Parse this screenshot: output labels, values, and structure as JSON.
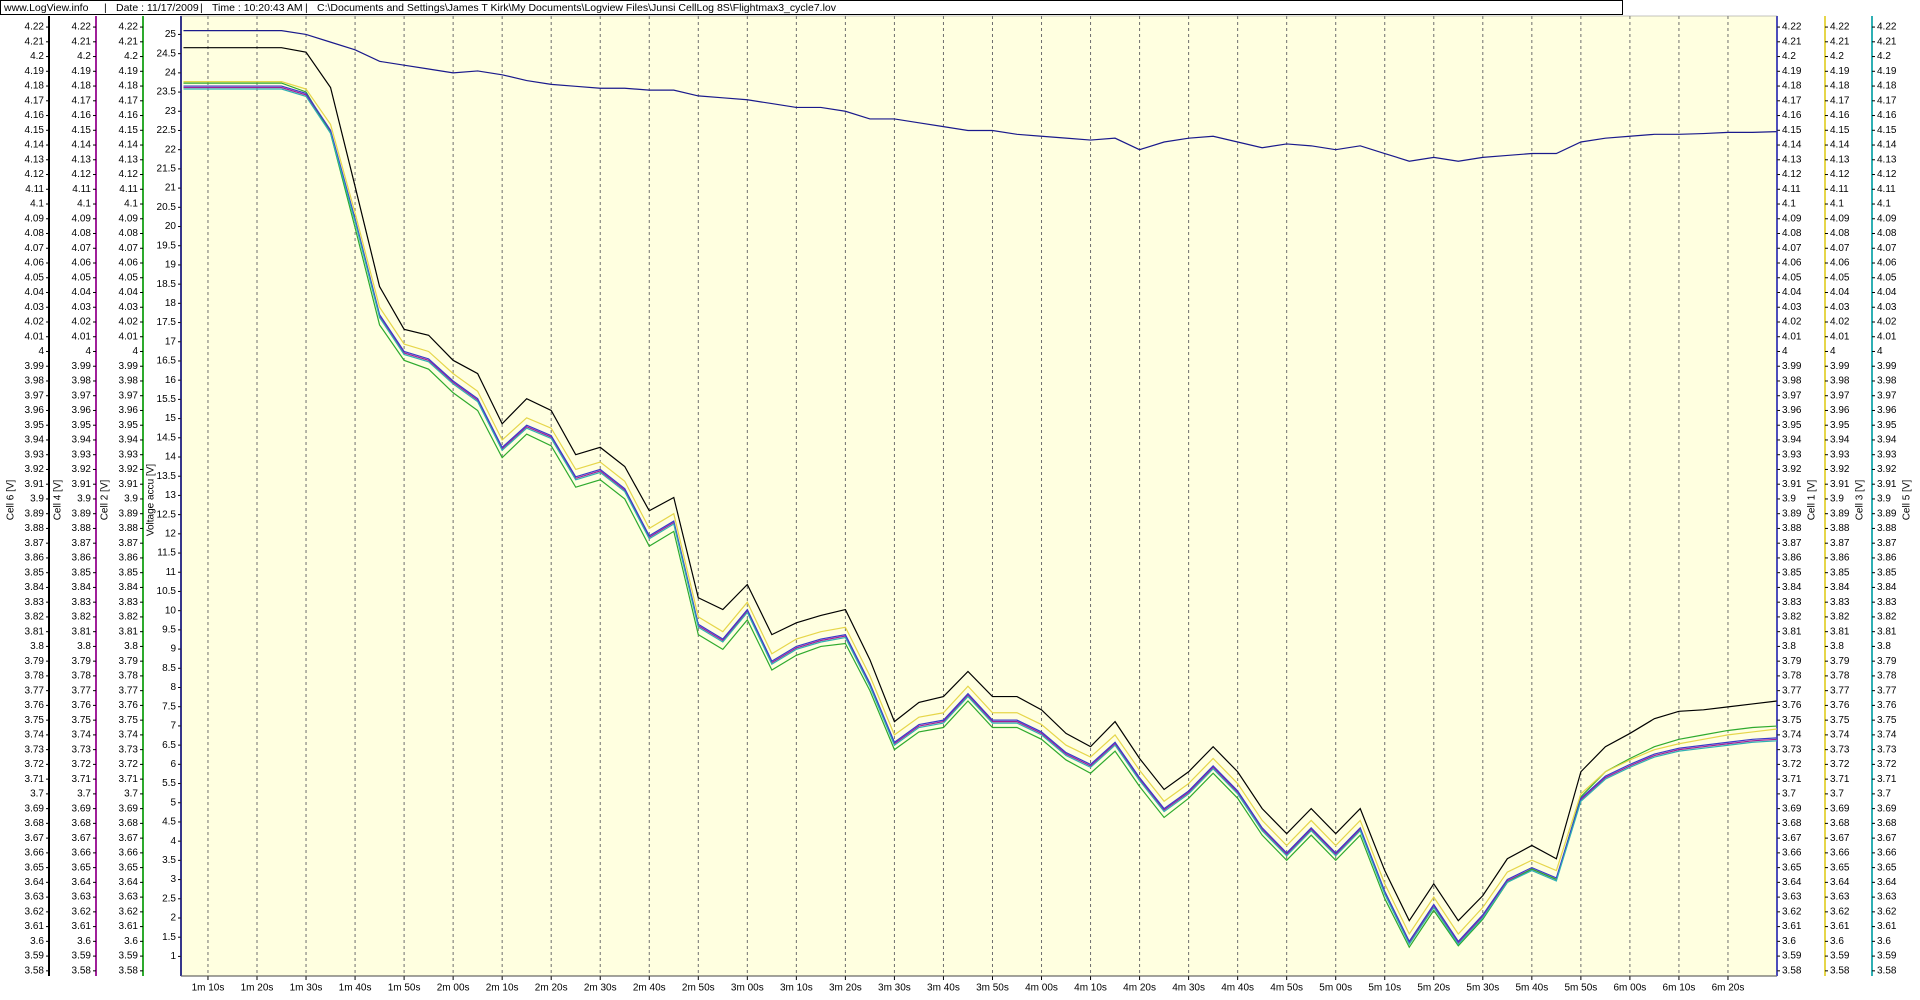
{
  "header": {
    "site": "www.LogView.info",
    "date": "Date : 11/17/2009",
    "time": "Time : 10:20:43 AM",
    "file": "C:\\Documents and Settings\\James T Kirk\\My Documents\\Logview Files\\Junsi CellLog 8S\\Flightmax3_cycle7.lov"
  },
  "chart_data": {
    "type": "line",
    "grid": true,
    "background": "#ffffe0",
    "x": [
      65,
      70,
      75,
      80,
      85,
      90,
      95,
      100,
      105,
      110,
      115,
      120,
      125,
      130,
      135,
      140,
      145,
      150,
      155,
      160,
      165,
      170,
      175,
      180,
      185,
      190,
      195,
      200,
      205,
      210,
      215,
      220,
      225,
      230,
      235,
      240,
      245,
      250,
      255,
      260,
      265,
      270,
      275,
      280,
      285,
      290,
      295,
      300,
      305,
      310,
      315,
      320,
      325,
      330,
      335,
      340,
      345,
      350,
      355,
      360,
      365,
      370,
      375,
      380,
      385,
      390
    ],
    "xlim": [
      64.5,
      390
    ],
    "xticks": [
      {
        "value": 70,
        "label": "1m 10s"
      },
      {
        "value": 80,
        "label": "1m 20s"
      },
      {
        "value": 90,
        "label": "1m 30s"
      },
      {
        "value": 100,
        "label": "1m 40s"
      },
      {
        "value": 110,
        "label": "1m 50s"
      },
      {
        "value": 120,
        "label": "2m 00s"
      },
      {
        "value": 130,
        "label": "2m 10s"
      },
      {
        "value": 140,
        "label": "2m 20s"
      },
      {
        "value": 150,
        "label": "2m 30s"
      },
      {
        "value": 160,
        "label": "2m 40s"
      },
      {
        "value": 170,
        "label": "2m 50s"
      },
      {
        "value": 180,
        "label": "3m 00s"
      },
      {
        "value": 190,
        "label": "3m 10s"
      },
      {
        "value": 200,
        "label": "3m 20s"
      },
      {
        "value": 210,
        "label": "3m 30s"
      },
      {
        "value": 220,
        "label": "3m 40s"
      },
      {
        "value": 230,
        "label": "3m 50s"
      },
      {
        "value": 240,
        "label": "4m 00s"
      },
      {
        "value": 250,
        "label": "4m 10s"
      },
      {
        "value": 260,
        "label": "4m 20s"
      },
      {
        "value": 270,
        "label": "4m 30s"
      },
      {
        "value": 280,
        "label": "4m 40s"
      },
      {
        "value": 290,
        "label": "4m 50s"
      },
      {
        "value": 300,
        "label": "5m 00s"
      },
      {
        "value": 310,
        "label": "5m 10s"
      },
      {
        "value": 320,
        "label": "5m 20s"
      },
      {
        "value": 330,
        "label": "5m 30s"
      },
      {
        "value": 340,
        "label": "5m 40s"
      },
      {
        "value": 350,
        "label": "5m 50s"
      },
      {
        "value": 360,
        "label": "6m 00s"
      },
      {
        "value": 370,
        "label": "6m 10s"
      },
      {
        "value": 380,
        "label": "6m 20s"
      }
    ],
    "series": [
      {
        "name": "Cell 6 [V]",
        "color": "#000000",
        "side": "left",
        "ylim": [
          3.5765,
          4.2275
        ],
        "yticks": [
          3.58,
          3.59,
          3.6,
          3.61,
          3.62,
          3.63,
          3.64,
          3.65,
          3.66,
          3.67,
          3.68,
          3.69,
          3.7,
          3.71,
          3.72,
          3.73,
          3.74,
          3.75,
          3.76,
          3.77,
          3.78,
          3.79,
          3.8,
          3.81,
          3.82,
          3.83,
          3.84,
          3.85,
          3.86,
          3.87,
          3.88,
          3.89,
          3.9,
          3.91,
          3.92,
          3.93,
          3.94,
          3.95,
          3.96,
          3.97,
          3.98,
          3.99,
          4,
          4.01,
          4.02,
          4.03,
          4.04,
          4.05,
          4.06,
          4.07,
          4.08,
          4.09,
          4.1,
          4.11,
          4.12,
          4.13,
          4.14,
          4.15,
          4.16,
          4.17,
          4.18,
          4.19,
          4.2,
          4.21,
          4.22
        ],
        "values": [
          4.206,
          4.206,
          4.206,
          4.206,
          4.206,
          4.203,
          4.179,
          4.112,
          4.044,
          4.015,
          4.011,
          3.994,
          3.985,
          3.951,
          3.968,
          3.96,
          3.93,
          3.935,
          3.922,
          3.892,
          3.901,
          3.833,
          3.825,
          3.842,
          3.808,
          3.816,
          3.821,
          3.825,
          3.791,
          3.749,
          3.762,
          3.766,
          3.783,
          3.766,
          3.766,
          3.757,
          3.741,
          3.732,
          3.749,
          3.724,
          3.703,
          3.715,
          3.732,
          3.715,
          3.69,
          3.673,
          3.69,
          3.673,
          3.69,
          3.648,
          3.614,
          3.639,
          3.614,
          3.631,
          3.656,
          3.665,
          3.656,
          3.715,
          3.732,
          3.741,
          3.751,
          3.756,
          3.757,
          3.759,
          3.761,
          3.763
        ]
      },
      {
        "name": "Cell 4 [V]",
        "color": "#a0209a",
        "side": "left",
        "ylim": [
          3.5765,
          4.2275
        ],
        "yticks": [
          3.58,
          3.59,
          3.6,
          3.61,
          3.62,
          3.63,
          3.64,
          3.65,
          3.66,
          3.67,
          3.68,
          3.69,
          3.7,
          3.71,
          3.72,
          3.73,
          3.74,
          3.75,
          3.76,
          3.77,
          3.78,
          3.79,
          3.8,
          3.81,
          3.82,
          3.83,
          3.84,
          3.85,
          3.86,
          3.87,
          3.88,
          3.89,
          3.9,
          3.91,
          3.92,
          3.93,
          3.94,
          3.95,
          3.96,
          3.97,
          3.98,
          3.99,
          4,
          4.01,
          4.02,
          4.03,
          4.04,
          4.05,
          4.06,
          4.07,
          4.08,
          4.09,
          4.1,
          4.11,
          4.12,
          4.13,
          4.14,
          4.15,
          4.16,
          4.17,
          4.18,
          4.19,
          4.2,
          4.21,
          4.22
        ],
        "values": [
          4.179,
          4.179,
          4.179,
          4.179,
          4.179,
          4.174,
          4.149,
          4.089,
          4.024,
          3.999,
          3.994,
          3.979,
          3.967,
          3.934,
          3.949,
          3.942,
          3.914,
          3.919,
          3.906,
          3.874,
          3.884,
          3.814,
          3.804,
          3.824,
          3.789,
          3.799,
          3.804,
          3.807,
          3.774,
          3.734,
          3.746,
          3.749,
          3.767,
          3.749,
          3.749,
          3.741,
          3.727,
          3.719,
          3.734,
          3.71,
          3.689,
          3.701,
          3.718,
          3.701,
          3.676,
          3.659,
          3.676,
          3.659,
          3.676,
          3.633,
          3.599,
          3.624,
          3.599,
          3.617,
          3.641,
          3.649,
          3.642,
          3.696,
          3.711,
          3.719,
          3.726,
          3.73,
          3.732,
          3.734,
          3.736,
          3.737
        ]
      },
      {
        "name": "Cell 2 [V]",
        "color": "#2eaa2e",
        "side": "left",
        "ylim": [
          3.5765,
          4.2275
        ],
        "yticks": [
          3.58,
          3.59,
          3.6,
          3.61,
          3.62,
          3.63,
          3.64,
          3.65,
          3.66,
          3.67,
          3.68,
          3.69,
          3.7,
          3.71,
          3.72,
          3.73,
          3.74,
          3.75,
          3.76,
          3.77,
          3.78,
          3.79,
          3.8,
          3.81,
          3.82,
          3.83,
          3.84,
          3.85,
          3.86,
          3.87,
          3.88,
          3.89,
          3.9,
          3.91,
          3.92,
          3.93,
          3.94,
          3.95,
          3.96,
          3.97,
          3.98,
          3.99,
          4,
          4.01,
          4.02,
          4.03,
          4.04,
          4.05,
          4.06,
          4.07,
          4.08,
          4.09,
          4.1,
          4.11,
          4.12,
          4.13,
          4.14,
          4.15,
          4.16,
          4.17,
          4.18,
          4.19,
          4.2,
          4.21,
          4.22
        ],
        "values": [
          4.182,
          4.182,
          4.182,
          4.182,
          4.182,
          4.176,
          4.148,
          4.084,
          4.018,
          3.994,
          3.988,
          3.972,
          3.96,
          3.928,
          3.944,
          3.936,
          3.908,
          3.913,
          3.9,
          3.868,
          3.878,
          3.808,
          3.798,
          3.818,
          3.784,
          3.794,
          3.8,
          3.802,
          3.77,
          3.73,
          3.742,
          3.745,
          3.763,
          3.745,
          3.745,
          3.737,
          3.723,
          3.714,
          3.729,
          3.705,
          3.684,
          3.697,
          3.714,
          3.697,
          3.672,
          3.655,
          3.672,
          3.655,
          3.672,
          3.629,
          3.596,
          3.621,
          3.597,
          3.615,
          3.64,
          3.649,
          3.642,
          3.698,
          3.715,
          3.724,
          3.732,
          3.737,
          3.74,
          3.743,
          3.745,
          3.746
        ]
      },
      {
        "name": "Voltage accu [V]",
        "color": "#1a1a8c",
        "side": "left",
        "ylim": [
          0.49,
          25.48
        ],
        "yticks": [
          1,
          1.5,
          2,
          2.5,
          3,
          3.5,
          4,
          4.5,
          5,
          5.5,
          6,
          6.5,
          7,
          7.5,
          8,
          8.5,
          9,
          9.5,
          10,
          10.5,
          11,
          11.5,
          12,
          12.5,
          13,
          13.5,
          14,
          14.5,
          15,
          15.5,
          16,
          16.5,
          17,
          17.5,
          18,
          18.5,
          19,
          19.5,
          20,
          20.5,
          21,
          21.5,
          22,
          22.5,
          23,
          23.5,
          24,
          24.5,
          25
        ],
        "values": [
          25.1,
          25.1,
          25.1,
          25.1,
          25.1,
          25.0,
          24.8,
          24.6,
          24.3,
          24.2,
          24.1,
          24.0,
          24.05,
          23.95,
          23.8,
          23.7,
          23.65,
          23.6,
          23.6,
          23.55,
          23.55,
          23.4,
          23.35,
          23.3,
          23.2,
          23.1,
          23.1,
          23.0,
          22.8,
          22.8,
          22.7,
          22.6,
          22.5,
          22.5,
          22.4,
          22.35,
          22.3,
          22.25,
          22.3,
          22.0,
          22.2,
          22.3,
          22.35,
          22.2,
          22.05,
          22.15,
          22.1,
          22.0,
          22.1,
          21.9,
          21.7,
          21.8,
          21.7,
          21.8,
          21.85,
          21.9,
          21.9,
          22.2,
          22.3,
          22.35,
          22.4,
          22.4,
          22.42,
          22.45,
          22.45,
          22.47
        ]
      },
      {
        "name": "Cell 1 [V]",
        "color": "#3a3acc",
        "side": "right",
        "ylim": [
          3.5765,
          4.2275
        ],
        "yticks": [
          3.58,
          3.59,
          3.6,
          3.61,
          3.62,
          3.63,
          3.64,
          3.65,
          3.66,
          3.67,
          3.68,
          3.69,
          3.7,
          3.71,
          3.72,
          3.73,
          3.74,
          3.75,
          3.76,
          3.77,
          3.78,
          3.79,
          3.8,
          3.81,
          3.82,
          3.83,
          3.84,
          3.85,
          3.86,
          3.87,
          3.88,
          3.89,
          3.9,
          3.91,
          3.92,
          3.93,
          3.94,
          3.95,
          3.96,
          3.97,
          3.98,
          3.99,
          4,
          4.01,
          4.02,
          4.03,
          4.04,
          4.05,
          4.06,
          4.07,
          4.08,
          4.09,
          4.1,
          4.11,
          4.12,
          4.13,
          4.14,
          4.15,
          4.16,
          4.17,
          4.18,
          4.19,
          4.2,
          4.21,
          4.22
        ],
        "values": [
          4.18,
          4.18,
          4.18,
          4.18,
          4.18,
          4.175,
          4.15,
          4.09,
          4.025,
          4.0,
          3.995,
          3.98,
          3.968,
          3.935,
          3.95,
          3.943,
          3.915,
          3.92,
          3.907,
          3.875,
          3.885,
          3.815,
          3.805,
          3.825,
          3.79,
          3.8,
          3.805,
          3.808,
          3.775,
          3.735,
          3.747,
          3.75,
          3.768,
          3.75,
          3.75,
          3.742,
          3.728,
          3.72,
          3.735,
          3.711,
          3.69,
          3.702,
          3.719,
          3.702,
          3.677,
          3.66,
          3.677,
          3.66,
          3.677,
          3.634,
          3.6,
          3.625,
          3.6,
          3.618,
          3.642,
          3.65,
          3.643,
          3.697,
          3.712,
          3.72,
          3.727,
          3.731,
          3.733,
          3.735,
          3.737,
          3.738
        ]
      },
      {
        "name": "Cell 3 [V]",
        "color": "#e6d64a",
        "side": "right",
        "ylim": [
          3.5765,
          4.2275
        ],
        "yticks": [
          3.58,
          3.59,
          3.6,
          3.61,
          3.62,
          3.63,
          3.64,
          3.65,
          3.66,
          3.67,
          3.68,
          3.69,
          3.7,
          3.71,
          3.72,
          3.73,
          3.74,
          3.75,
          3.76,
          3.77,
          3.78,
          3.79,
          3.8,
          3.81,
          3.82,
          3.83,
          3.84,
          3.85,
          3.86,
          3.87,
          3.88,
          3.89,
          3.9,
          3.91,
          3.92,
          3.93,
          3.94,
          3.95,
          3.96,
          3.97,
          3.98,
          3.99,
          4,
          4.01,
          4.02,
          4.03,
          4.04,
          4.05,
          4.06,
          4.07,
          4.08,
          4.09,
          4.1,
          4.11,
          4.12,
          4.13,
          4.14,
          4.15,
          4.16,
          4.17,
          4.18,
          4.19,
          4.2,
          4.21,
          4.22
        ],
        "values": [
          4.183,
          4.183,
          4.183,
          4.183,
          4.183,
          4.178,
          4.154,
          4.094,
          4.03,
          4.005,
          4.0,
          3.985,
          3.973,
          3.94,
          3.955,
          3.948,
          3.92,
          3.925,
          3.912,
          3.88,
          3.89,
          3.82,
          3.81,
          3.83,
          3.795,
          3.805,
          3.81,
          3.813,
          3.78,
          3.74,
          3.752,
          3.755,
          3.773,
          3.755,
          3.755,
          3.747,
          3.733,
          3.725,
          3.74,
          3.716,
          3.695,
          3.707,
          3.724,
          3.707,
          3.682,
          3.665,
          3.682,
          3.665,
          3.682,
          3.639,
          3.605,
          3.63,
          3.605,
          3.623,
          3.647,
          3.655,
          3.648,
          3.7,
          3.715,
          3.723,
          3.73,
          3.734,
          3.737,
          3.74,
          3.742,
          3.744
        ]
      },
      {
        "name": "Cell 5 [V]",
        "color": "#2fb0b4",
        "side": "right",
        "ylim": [
          3.5765,
          4.2275
        ],
        "yticks": [
          3.58,
          3.59,
          3.6,
          3.61,
          3.62,
          3.63,
          3.64,
          3.65,
          3.66,
          3.67,
          3.68,
          3.69,
          3.7,
          3.71,
          3.72,
          3.73,
          3.74,
          3.75,
          3.76,
          3.77,
          3.78,
          3.79,
          3.8,
          3.81,
          3.82,
          3.83,
          3.84,
          3.85,
          3.86,
          3.87,
          3.88,
          3.89,
          3.9,
          3.91,
          3.92,
          3.93,
          3.94,
          3.95,
          3.96,
          3.97,
          3.98,
          3.99,
          4,
          4.01,
          4.02,
          4.03,
          4.04,
          4.05,
          4.06,
          4.07,
          4.08,
          4.09,
          4.1,
          4.11,
          4.12,
          4.13,
          4.14,
          4.15,
          4.16,
          4.17,
          4.18,
          4.19,
          4.2,
          4.21,
          4.22
        ],
        "values": [
          4.178,
          4.178,
          4.178,
          4.178,
          4.178,
          4.173,
          4.148,
          4.088,
          4.023,
          3.998,
          3.993,
          3.978,
          3.966,
          3.933,
          3.948,
          3.941,
          3.913,
          3.918,
          3.905,
          3.873,
          3.883,
          3.813,
          3.803,
          3.823,
          3.788,
          3.798,
          3.803,
          3.806,
          3.773,
          3.733,
          3.745,
          3.748,
          3.766,
          3.748,
          3.748,
          3.74,
          3.726,
          3.718,
          3.733,
          3.709,
          3.688,
          3.7,
          3.717,
          3.7,
          3.675,
          3.658,
          3.675,
          3.658,
          3.675,
          3.632,
          3.598,
          3.623,
          3.598,
          3.616,
          3.64,
          3.648,
          3.641,
          3.695,
          3.71,
          3.718,
          3.725,
          3.729,
          3.731,
          3.733,
          3.735,
          3.736
        ]
      }
    ]
  }
}
